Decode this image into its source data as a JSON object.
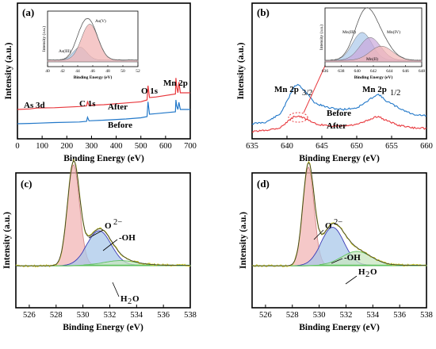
{
  "chart_data": [
    {
      "panel": "(a)",
      "type": "line",
      "xlabel": "Binding Energy (eV)",
      "ylabel": "Intensity (a.u.)",
      "xlim": [
        0,
        700
      ],
      "xticks": [
        0,
        100,
        200,
        300,
        400,
        500,
        600,
        700
      ],
      "series": [
        {
          "name": "After",
          "color": "#e8383d",
          "x": [
            0,
            50,
            80,
            150,
            250,
            280,
            284,
            290,
            350,
            440,
            500,
            525,
            529,
            535,
            560,
            640,
            642,
            645,
            650,
            654,
            660,
            700
          ],
          "y": [
            0.32,
            0.33,
            0.345,
            0.35,
            0.37,
            0.38,
            0.45,
            0.39,
            0.4,
            0.43,
            0.45,
            0.48,
            0.72,
            0.52,
            0.53,
            0.58,
            0.85,
            0.7,
            0.6,
            0.78,
            0.6,
            0.6
          ]
        },
        {
          "name": "Before",
          "color": "#2278c9",
          "x": [
            0,
            50,
            80,
            150,
            250,
            280,
            284,
            290,
            350,
            440,
            500,
            525,
            529,
            535,
            560,
            640,
            642,
            645,
            650,
            654,
            660,
            700
          ],
          "y": [
            0.08,
            0.085,
            0.09,
            0.1,
            0.11,
            0.12,
            0.19,
            0.13,
            0.14,
            0.16,
            0.18,
            0.2,
            0.45,
            0.24,
            0.25,
            0.28,
            0.48,
            0.38,
            0.32,
            0.44,
            0.32,
            0.32
          ]
        }
      ],
      "annotations": [
        "As 3d",
        "C 1s",
        "O 1s",
        "Mn 2p",
        "After",
        "Before"
      ],
      "inset": {
        "xlim": [
          40,
          52
        ],
        "xticks": [
          40,
          42,
          44,
          46,
          48,
          50,
          52
        ],
        "xlabel": "Binding Energy (eV)",
        "ylabel": "Intensity (a.u.)",
        "labels": [
          "As(V)",
          "As(III)"
        ],
        "components": [
          {
            "name": "As(III)",
            "center": 44.3,
            "height": 0.28,
            "width": 0.9
          },
          {
            "name": "As(V)",
            "center": 45.6,
            "height": 0.78,
            "width": 1.1
          }
        ]
      }
    },
    {
      "panel": "(b)",
      "type": "line",
      "xlabel": "Binding Energy (eV)",
      "ylabel": "Intensity (a.u.)",
      "xlim": [
        635,
        660
      ],
      "xticks": [
        635,
        640,
        645,
        650,
        655,
        660
      ],
      "series": [
        {
          "name": "Before",
          "color": "#2278c9",
          "x": [
            635,
            637,
            639,
            640,
            641,
            641.6,
            642.5,
            644,
            646,
            648,
            650,
            651.5,
            652.5,
            653.2,
            654,
            656,
            658,
            660
          ],
          "y": [
            0.1,
            0.12,
            0.22,
            0.38,
            0.57,
            0.6,
            0.52,
            0.36,
            0.3,
            0.28,
            0.3,
            0.38,
            0.45,
            0.47,
            0.4,
            0.3,
            0.22,
            0.2
          ]
        },
        {
          "name": "After",
          "color": "#e8383d",
          "x": [
            635,
            637,
            639,
            640,
            641,
            641.6,
            642.5,
            644,
            646,
            648,
            650,
            651.5,
            652.5,
            653.2,
            654,
            656,
            658,
            660
          ],
          "y": [
            0.0,
            0.02,
            0.05,
            0.12,
            0.19,
            0.2,
            0.17,
            0.1,
            0.07,
            0.07,
            0.09,
            0.14,
            0.18,
            0.19,
            0.15,
            0.08,
            0.05,
            0.04
          ]
        }
      ],
      "annotations": [
        "Mn 2p",
        "3/2",
        "Mn 2p",
        "1/2",
        "Before",
        "After"
      ],
      "inset": {
        "xlim": [
          636,
          648
        ],
        "xticks": [
          636,
          638,
          640,
          642,
          644,
          646,
          648
        ],
        "xlabel": "Binding Energy (eV)",
        "ylabel": "Intensity (a.u.)",
        "labels": [
          "Mn(II)",
          "Mn(III)",
          "Mn(IV)"
        ],
        "components": [
          {
            "name": "Mn(II)",
            "center": 640.6,
            "height": 0.55,
            "width": 1.2
          },
          {
            "name": "Mn(III)",
            "center": 641.6,
            "height": 0.45,
            "width": 1.3
          },
          {
            "name": "Mn(IV)",
            "center": 643.0,
            "height": 0.28,
            "width": 1.4
          }
        ]
      }
    },
    {
      "panel": "(c)",
      "type": "line",
      "xlabel": "Binding Energy (eV)",
      "ylabel": "Intensity (a.u.)",
      "xlim": [
        525,
        538
      ],
      "xticks": [
        526,
        528,
        530,
        532,
        534,
        536,
        538
      ],
      "labels": [
        "O",
        "2−",
        "-OH",
        "H",
        "2",
        "O"
      ],
      "components": [
        {
          "name": "O2-",
          "center": 529.3,
          "height": 0.88,
          "width": 0.45
        },
        {
          "name": "-OH",
          "center": 531.2,
          "height": 0.3,
          "width": 0.9
        },
        {
          "name": "H2O",
          "center": 532.8,
          "height": 0.04,
          "width": 1.2
        }
      ]
    },
    {
      "panel": "(d)",
      "type": "line",
      "xlabel": "Binding Energy (eV)",
      "ylabel": "Intensity (a.u.)",
      "xlim": [
        525,
        538
      ],
      "xticks": [
        526,
        528,
        530,
        532,
        534,
        536,
        538
      ],
      "labels": [
        "O",
        "2−",
        "-OH",
        "H",
        "2",
        "O"
      ],
      "components": [
        {
          "name": "O2-",
          "center": 529.2,
          "height": 0.86,
          "width": 0.42
        },
        {
          "name": "-OH",
          "center": 531.0,
          "height": 0.33,
          "width": 0.85
        },
        {
          "name": "H2O",
          "center": 532.8,
          "height": 0.12,
          "width": 1.1
        }
      ]
    }
  ],
  "colors": {
    "red": "#e8383d",
    "blue": "#2278c9",
    "pink": "#f2b6b6",
    "lightblue": "#a9c8ea",
    "green": "#5fc25f",
    "envelope": "#c8c82a",
    "fit": "#333333"
  }
}
